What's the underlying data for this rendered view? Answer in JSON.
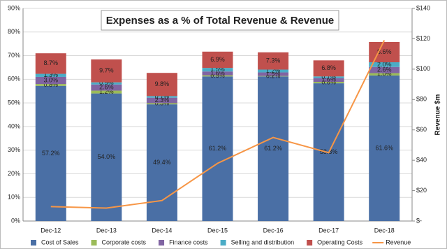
{
  "chart_data": {
    "type": "stacked-bar-line",
    "title": "Expenses as a % of Total Revenue & Revenue",
    "y2label": "Revenue $m",
    "categories": [
      "Dec-12",
      "Dec-13",
      "Dec-14",
      "Dec-15",
      "Dec-16",
      "Dec-17",
      "Dec-18"
    ],
    "series": [
      {
        "name": "Cost of Sales",
        "color": "#4a6fa5",
        "values": [
          57.2,
          54.0,
          49.4,
          61.2,
          61.2,
          58.3,
          61.6
        ],
        "value_labels": [
          "57.2%",
          "54.0%",
          "49.4%",
          "61.2%",
          "61.2%",
          "58.3%",
          "61.6%"
        ]
      },
      {
        "name": "Corporate costs",
        "color": "#9bbb59",
        "values": [
          0.8,
          1.2,
          0.5,
          0.5,
          0.2,
          0.6,
          1.0
        ],
        "value_labels": [
          "0.8%",
          "1.2%",
          "0.5%",
          "0.5%",
          "0.2%",
          "0.6%",
          "1.0%"
        ]
      },
      {
        "name": "Finance costs",
        "color": "#8064a2",
        "values": [
          3.0,
          2.6,
          2.3,
          1.6,
          1.5,
          1.6,
          2.6
        ],
        "value_labels": [
          "3.0%",
          "2.6%",
          "2.3%",
          "1.6%",
          "1.5%",
          "1.6%",
          "2.6%"
        ]
      },
      {
        "name": "Selling and distribution",
        "color": "#4bacc6",
        "values": [
          1.3,
          0.9,
          0.7,
          1.5,
          1.2,
          0.7,
          2.0
        ],
        "value_labels": [
          "1.3%",
          "0.9%",
          "0.7%",
          "1.5%",
          "1.2%",
          "0.7%",
          "2.0%"
        ]
      },
      {
        "name": "Operating Costs",
        "color": "#c0504d",
        "values": [
          8.7,
          9.7,
          9.8,
          6.9,
          7.3,
          6.8,
          8.6
        ],
        "value_labels": [
          "8.7%",
          "9.7%",
          "9.8%",
          "6.9%",
          "7.3%",
          "6.8%",
          "8.6%"
        ]
      },
      {
        "name": "Revenue",
        "color": "#f79646",
        "type": "line",
        "axis": "y2",
        "values": [
          9.5,
          8.5,
          13.5,
          38,
          55,
          45,
          119
        ]
      }
    ],
    "ylim": [
      0,
      90
    ],
    "yticks": [
      {
        "value": 0,
        "label": "0%"
      },
      {
        "value": 10,
        "label": "10%"
      },
      {
        "value": 20,
        "label": "20%"
      },
      {
        "value": 30,
        "label": "30%"
      },
      {
        "value": 40,
        "label": "40%"
      },
      {
        "value": 50,
        "label": "50%"
      },
      {
        "value": 60,
        "label": "60%"
      },
      {
        "value": 70,
        "label": "70%"
      },
      {
        "value": 80,
        "label": "80%"
      },
      {
        "value": 90,
        "label": "90%"
      }
    ],
    "y2lim": [
      0,
      140
    ],
    "y2ticks": [
      {
        "value": 0,
        "label": "$-"
      },
      {
        "value": 20,
        "label": "$20"
      },
      {
        "value": 40,
        "label": "$40"
      },
      {
        "value": 60,
        "label": "$60"
      },
      {
        "value": 80,
        "label": "$80"
      },
      {
        "value": 100,
        "label": "$100"
      },
      {
        "value": 120,
        "label": "$120"
      },
      {
        "value": 140,
        "label": "$140"
      }
    ],
    "grid": true,
    "legend": "bottom"
  }
}
